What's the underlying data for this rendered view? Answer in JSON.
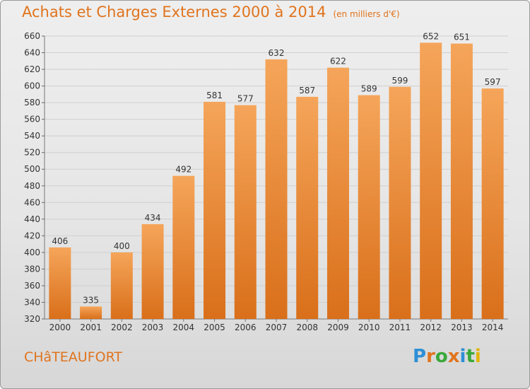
{
  "header": {
    "title": "Achats et Charges Externes 2000 à 2014",
    "unit": "(en milliers d'€)"
  },
  "footer": {
    "place": "CHâTEAUFORT",
    "brand": "Proxiti",
    "brand_colors": [
      "#2e8fd6",
      "#e0741e",
      "#3aa83a",
      "#e0741e",
      "#2e8fd6",
      "#3aa83a",
      "#e3b400"
    ]
  },
  "colors": {
    "accent": "#e0741e",
    "bar_top": "#f5a55a",
    "bar_bottom": "#d96f1a"
  },
  "chart_data": {
    "type": "bar",
    "title": "Achats et Charges Externes 2000 à 2014",
    "subtitle": "(en milliers d'€)",
    "categories": [
      "2000",
      "2001",
      "2002",
      "2003",
      "2004",
      "2005",
      "2006",
      "2007",
      "2008",
      "2009",
      "2010",
      "2011",
      "2012",
      "2013",
      "2014"
    ],
    "values": [
      406,
      335,
      400,
      434,
      492,
      581,
      577,
      632,
      587,
      622,
      589,
      599,
      652,
      651,
      597
    ],
    "ylim": [
      320,
      660
    ],
    "yticks": [
      320,
      340,
      360,
      380,
      400,
      420,
      440,
      460,
      480,
      500,
      520,
      540,
      560,
      580,
      600,
      620,
      640,
      660
    ],
    "grid": true,
    "legend": "none"
  }
}
